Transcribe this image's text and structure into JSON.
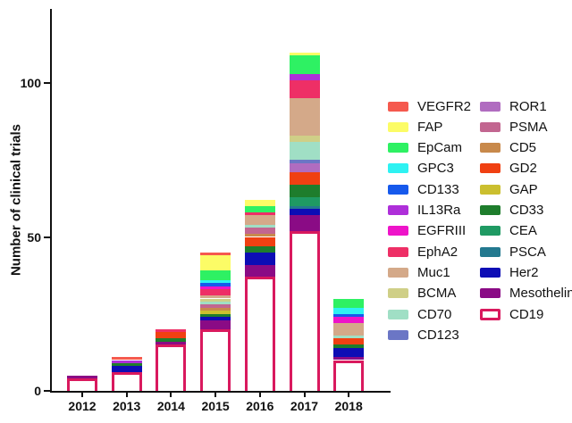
{
  "chart_data": {
    "type": "stacked-bar",
    "title": "",
    "xlabel": "",
    "ylabel": "Number of clinical trials",
    "categories": [
      "2012",
      "2013",
      "2014",
      "2015",
      "2016",
      "2017",
      "2018"
    ],
    "y_ticks": [
      0,
      50,
      100
    ],
    "ylim": [
      0,
      115
    ],
    "grid": false,
    "legend_position": "right",
    "totals_per_year": [
      5,
      11,
      20,
      45,
      62,
      110,
      30
    ],
    "series": [
      {
        "name": "CD19",
        "color": "#FFFFFF",
        "outline": "#D9195E",
        "values": [
          4,
          6,
          15,
          20,
          37,
          52,
          10
        ]
      },
      {
        "name": "Mesothelin",
        "color": "#8A0B85",
        "values": [
          1,
          0,
          1,
          3,
          4,
          5,
          1
        ]
      },
      {
        "name": "Her2",
        "color": "#0D0DB5",
        "values": [
          0,
          2,
          0,
          1,
          4,
          2,
          3
        ]
      },
      {
        "name": "PSCA",
        "color": "#23798F",
        "values": [
          0,
          0,
          0,
          0,
          0,
          1,
          0
        ]
      },
      {
        "name": "CEA",
        "color": "#1F9A63",
        "values": [
          0,
          0,
          0,
          0,
          0,
          3,
          0
        ]
      },
      {
        "name": "CD33",
        "color": "#1E7D2C",
        "values": [
          0,
          1,
          1,
          1,
          2,
          4,
          1
        ]
      },
      {
        "name": "GAP",
        "color": "#CBBF2F",
        "values": [
          0,
          0,
          0,
          1,
          0,
          0,
          0
        ]
      },
      {
        "name": "GD2",
        "color": "#F04012",
        "values": [
          0,
          0,
          2,
          0,
          3,
          4,
          2
        ]
      },
      {
        "name": "CD5",
        "color": "#C8894B",
        "values": [
          0,
          0,
          0,
          1,
          1,
          0,
          0
        ]
      },
      {
        "name": "PSMA",
        "color": "#C26690",
        "values": [
          0,
          0,
          0,
          1,
          2,
          0,
          0
        ]
      },
      {
        "name": "ROR1",
        "color": "#B06CC0",
        "values": [
          0,
          0,
          0,
          0,
          0,
          3,
          0
        ]
      },
      {
        "name": "CD123",
        "color": "#6B76C5",
        "values": [
          0,
          0,
          0,
          0,
          0,
          1,
          0
        ]
      },
      {
        "name": "CD70",
        "color": "#A0DFC5",
        "values": [
          0,
          0,
          0,
          1,
          1,
          6,
          1
        ]
      },
      {
        "name": "BCMA",
        "color": "#CFCF87",
        "values": [
          0,
          0,
          0,
          1,
          0,
          2,
          0
        ]
      },
      {
        "name": "Muc1",
        "color": "#D4A989",
        "values": [
          0,
          0,
          0,
          1,
          3,
          12,
          4
        ]
      },
      {
        "name": "EphA2",
        "color": "#EE2F66",
        "values": [
          0,
          0,
          1,
          2,
          1,
          6,
          0
        ]
      },
      {
        "name": "EGFRIII",
        "color": "#EE14C9",
        "values": [
          0,
          0,
          0,
          1,
          0,
          0,
          2
        ]
      },
      {
        "name": "IL13Ra",
        "color": "#AE2FD9",
        "values": [
          0,
          1,
          0,
          0,
          0,
          2,
          0
        ]
      },
      {
        "name": "CD133",
        "color": "#1659EC",
        "values": [
          0,
          0,
          0,
          1,
          0,
          0,
          1
        ]
      },
      {
        "name": "GPC3",
        "color": "#2EF2F2",
        "values": [
          0,
          0,
          0,
          1,
          0,
          0,
          2
        ]
      },
      {
        "name": "EpCam",
        "color": "#2EF163",
        "values": [
          0,
          0,
          0,
          3,
          2,
          6,
          3
        ]
      },
      {
        "name": "FAP",
        "color": "#FCFC66",
        "values": [
          0,
          0,
          0,
          5,
          2,
          1,
          0
        ]
      },
      {
        "name": "VEGFR2",
        "color": "#F5594E",
        "values": [
          0,
          1,
          0,
          1,
          0,
          0,
          0
        ]
      }
    ],
    "legend_columns": [
      [
        "VEGFR2",
        "FAP",
        "EpCam",
        "GPC3",
        "CD133",
        "IL13Ra",
        "EGFRIII",
        "EphA2",
        "Muc1",
        "BCMA",
        "CD70",
        "CD123"
      ],
      [
        "ROR1",
        "PSMA",
        "CD5",
        "GD2",
        "GAP",
        "CD33",
        "CEA",
        "PSCA",
        "Her2",
        "Mesothelin",
        "CD19"
      ]
    ]
  }
}
